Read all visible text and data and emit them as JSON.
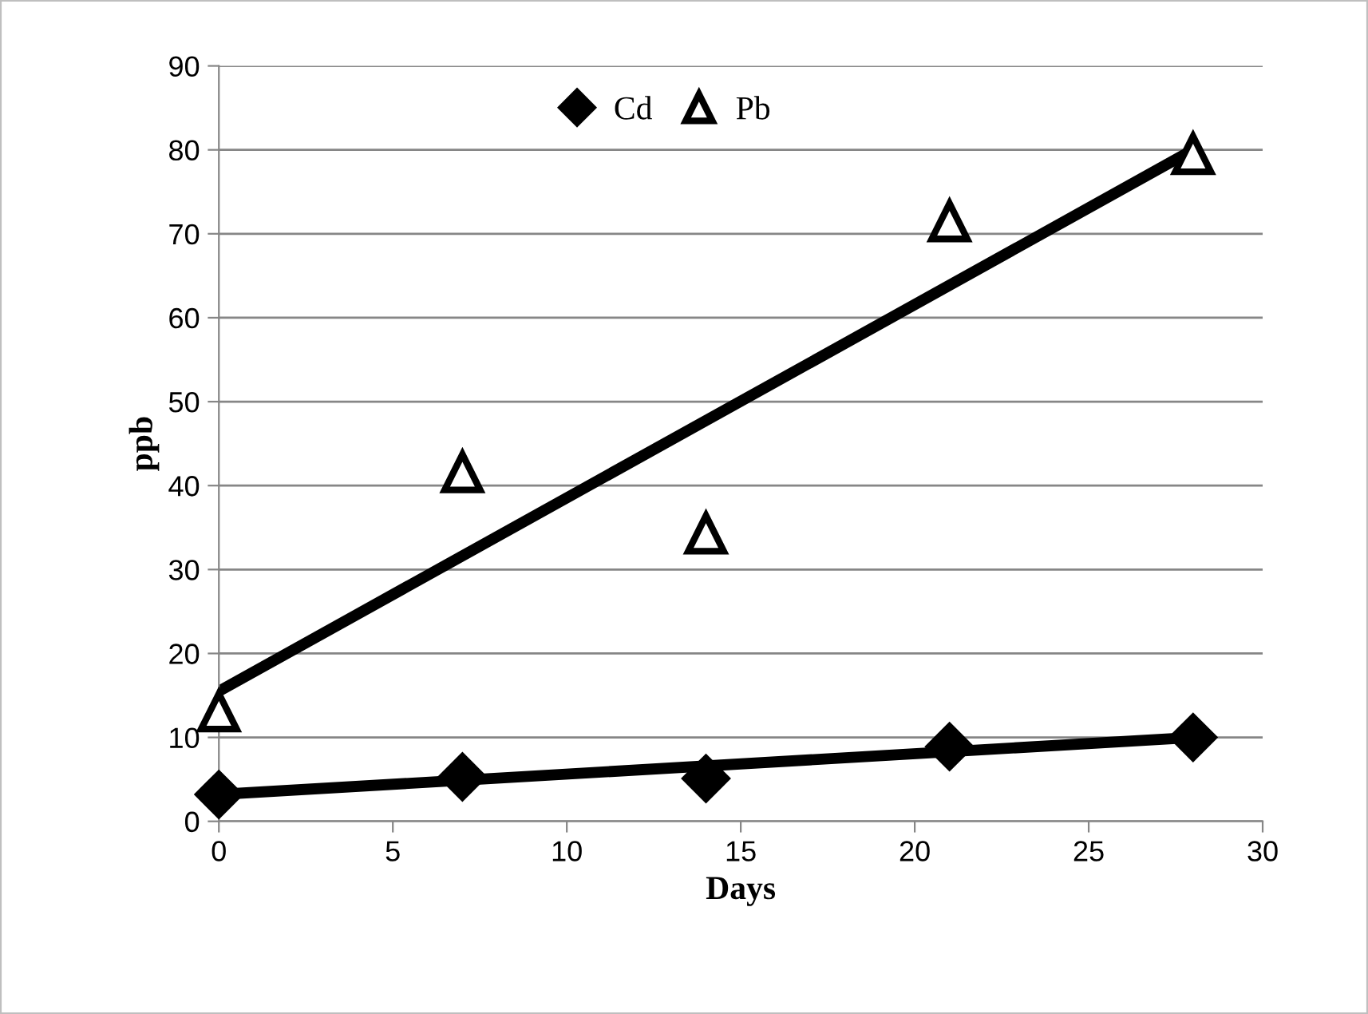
{
  "chart_data": {
    "type": "scatter",
    "xlabel": "Days",
    "ylabel": "ppb",
    "xlim": [
      0,
      30
    ],
    "xticks": [
      0,
      5,
      10,
      15,
      20,
      25,
      30
    ],
    "ylim": [
      0,
      90
    ],
    "yticks": [
      0,
      10,
      20,
      30,
      40,
      50,
      60,
      70,
      80,
      90
    ],
    "grid": "y",
    "legend": "top",
    "series": [
      {
        "name": "Cd",
        "color": "#000000",
        "marker": "diamond",
        "x": [
          0,
          7,
          14,
          21,
          28
        ],
        "values": [
          3.2,
          5.3,
          5.1,
          8.9,
          10
        ]
      },
      {
        "name": "Pb",
        "color": "#000000",
        "marker": "triangle",
        "x": [
          0,
          7,
          14,
          21,
          28
        ],
        "values": [
          13.1,
          41.6,
          34.3,
          71.5,
          79.5
        ]
      },
      {
        "type": "line",
        "color": "#000000",
        "marker": "none",
        "line_style": "solid",
        "x": [
          0,
          28
        ],
        "values": [
          15.5,
          80
        ]
      },
      {
        "type": "line",
        "color": "#000000",
        "marker": "none",
        "line_style": "solid",
        "x": [
          0,
          28
        ],
        "values": [
          3.2,
          10
        ]
      }
    ]
  }
}
